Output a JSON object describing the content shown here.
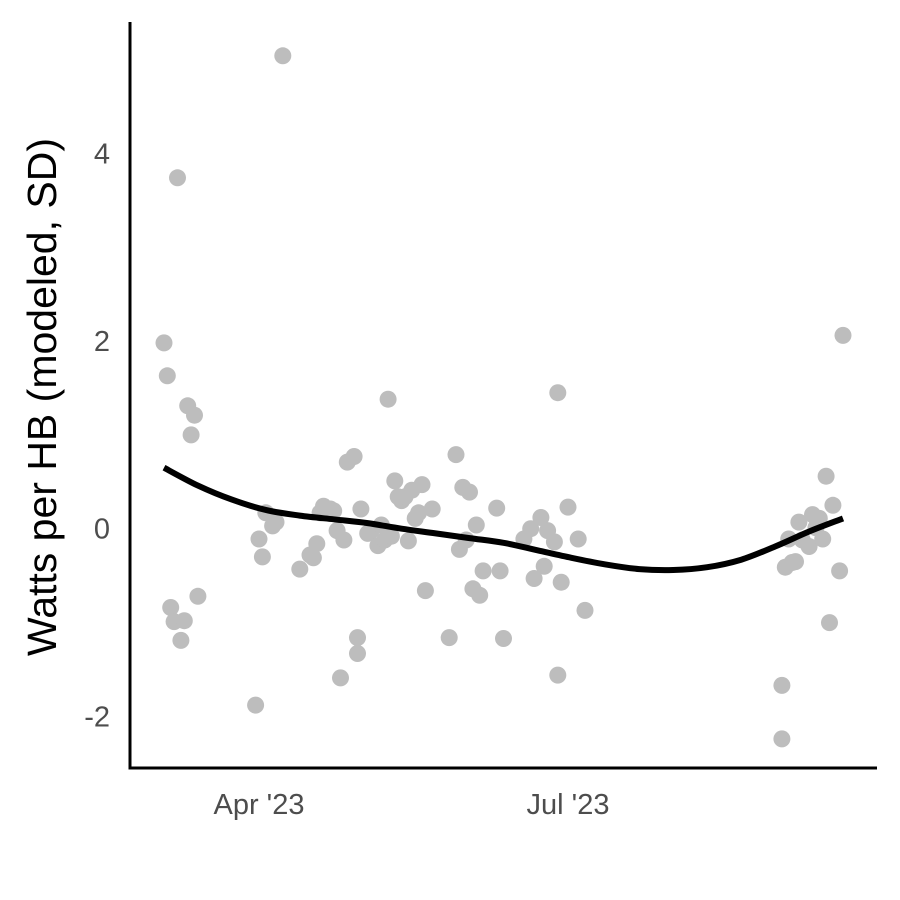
{
  "chart_data": {
    "type": "scatter",
    "title": "",
    "xlabel": "",
    "ylabel": "Watts per HB (modeled, SD)",
    "x_axis": {
      "type": "date",
      "ticks": [
        {
          "value": "2023-04-01",
          "label": "Apr '23"
        },
        {
          "value": "2023-07-01",
          "label": "Jul '23"
        }
      ],
      "range": [
        "2023-02-22",
        "2023-09-30"
      ]
    },
    "y_axis": {
      "ticks": [
        {
          "value": 4,
          "label": "4"
        },
        {
          "value": 2,
          "label": "2"
        },
        {
          "value": 0,
          "label": "0"
        },
        {
          "value": -2,
          "label": "-2"
        }
      ],
      "range": [
        -2.55,
        5.4
      ]
    },
    "grid": false,
    "legend": "none",
    "colors": {
      "points": "#bdbdbd",
      "smooth_line": "#000000",
      "axis": "#000000"
    },
    "series": [
      {
        "kind": "points",
        "points": [
          {
            "x": "2023-03-04",
            "y": 1.98
          },
          {
            "x": "2023-03-05",
            "y": 1.63
          },
          {
            "x": "2023-03-06",
            "y": -0.84
          },
          {
            "x": "2023-03-07",
            "y": -0.99
          },
          {
            "x": "2023-03-08",
            "y": 3.74
          },
          {
            "x": "2023-03-09",
            "y": -1.19
          },
          {
            "x": "2023-03-10",
            "y": -0.98
          },
          {
            "x": "2023-03-11",
            "y": 1.31
          },
          {
            "x": "2023-03-12",
            "y": 1.0
          },
          {
            "x": "2023-03-13",
            "y": 1.21
          },
          {
            "x": "2023-03-14",
            "y": -0.72
          },
          {
            "x": "2023-03-31",
            "y": -1.88
          },
          {
            "x": "2023-04-01",
            "y": -0.11
          },
          {
            "x": "2023-04-02",
            "y": -0.3
          },
          {
            "x": "2023-04-03",
            "y": 0.17
          },
          {
            "x": "2023-04-05",
            "y": 0.03
          },
          {
            "x": "2023-04-06",
            "y": 0.07
          },
          {
            "x": "2023-04-08",
            "y": 5.04
          },
          {
            "x": "2023-04-13",
            "y": -0.43
          },
          {
            "x": "2023-04-16",
            "y": -0.28
          },
          {
            "x": "2023-04-17",
            "y": -0.31
          },
          {
            "x": "2023-04-18",
            "y": -0.16
          },
          {
            "x": "2023-04-19",
            "y": 0.17
          },
          {
            "x": "2023-04-20",
            "y": 0.24
          },
          {
            "x": "2023-04-21",
            "y": 0.21
          },
          {
            "x": "2023-04-22",
            "y": 0.21
          },
          {
            "x": "2023-04-23",
            "y": 0.19
          },
          {
            "x": "2023-04-24",
            "y": -0.02
          },
          {
            "x": "2023-04-25",
            "y": -1.59
          },
          {
            "x": "2023-04-26",
            "y": -0.12
          },
          {
            "x": "2023-04-27",
            "y": 0.71
          },
          {
            "x": "2023-04-29",
            "y": 0.77
          },
          {
            "x": "2023-04-30",
            "y": -1.16
          },
          {
            "x": "2023-04-30",
            "y": -1.33
          },
          {
            "x": "2023-05-01",
            "y": 0.21
          },
          {
            "x": "2023-05-03",
            "y": -0.05
          },
          {
            "x": "2023-05-04",
            "y": -0.02
          },
          {
            "x": "2023-05-06",
            "y": -0.18
          },
          {
            "x": "2023-05-07",
            "y": 0.04
          },
          {
            "x": "2023-05-08",
            "y": -0.12
          },
          {
            "x": "2023-05-09",
            "y": 1.38
          },
          {
            "x": "2023-05-10",
            "y": -0.08
          },
          {
            "x": "2023-05-11",
            "y": 0.51
          },
          {
            "x": "2023-05-12",
            "y": 0.34
          },
          {
            "x": "2023-05-13",
            "y": 0.3
          },
          {
            "x": "2023-05-14",
            "y": 0.34
          },
          {
            "x": "2023-05-15",
            "y": -0.13
          },
          {
            "x": "2023-05-16",
            "y": 0.41
          },
          {
            "x": "2023-05-17",
            "y": 0.11
          },
          {
            "x": "2023-05-18",
            "y": 0.17
          },
          {
            "x": "2023-05-19",
            "y": 0.47
          },
          {
            "x": "2023-05-20",
            "y": -0.66
          },
          {
            "x": "2023-05-22",
            "y": 0.21
          },
          {
            "x": "2023-05-27",
            "y": -1.16
          },
          {
            "x": "2023-05-29",
            "y": 0.79
          },
          {
            "x": "2023-05-30",
            "y": -0.22
          },
          {
            "x": "2023-05-31",
            "y": 0.44
          },
          {
            "x": "2023-06-01",
            "y": -0.12
          },
          {
            "x": "2023-06-02",
            "y": 0.39
          },
          {
            "x": "2023-06-03",
            "y": -0.64
          },
          {
            "x": "2023-06-04",
            "y": 0.04
          },
          {
            "x": "2023-06-05",
            "y": -0.71
          },
          {
            "x": "2023-06-06",
            "y": -0.45
          },
          {
            "x": "2023-06-10",
            "y": 0.22
          },
          {
            "x": "2023-06-11",
            "y": -0.45
          },
          {
            "x": "2023-06-12",
            "y": -1.17
          },
          {
            "x": "2023-06-18",
            "y": -0.11
          },
          {
            "x": "2023-06-20",
            "y": 0.0
          },
          {
            "x": "2023-06-21",
            "y": -0.53
          },
          {
            "x": "2023-06-23",
            "y": 0.12
          },
          {
            "x": "2023-06-24",
            "y": -0.4
          },
          {
            "x": "2023-06-25",
            "y": -0.02
          },
          {
            "x": "2023-06-27",
            "y": -0.14
          },
          {
            "x": "2023-06-28",
            "y": -1.56
          },
          {
            "x": "2023-06-28",
            "y": 1.45
          },
          {
            "x": "2023-06-29",
            "y": -0.57
          },
          {
            "x": "2023-07-01",
            "y": 0.23
          },
          {
            "x": "2023-07-04",
            "y": -0.11
          },
          {
            "x": "2023-07-06",
            "y": -0.87
          },
          {
            "x": "2023-09-02",
            "y": -1.67
          },
          {
            "x": "2023-09-02",
            "y": -2.24
          },
          {
            "x": "2023-09-03",
            "y": -0.41
          },
          {
            "x": "2023-09-04",
            "y": -0.11
          },
          {
            "x": "2023-09-05",
            "y": -0.36
          },
          {
            "x": "2023-09-06",
            "y": -0.35
          },
          {
            "x": "2023-09-07",
            "y": 0.07
          },
          {
            "x": "2023-09-08",
            "y": -0.12
          },
          {
            "x": "2023-09-10",
            "y": -0.19
          },
          {
            "x": "2023-09-11",
            "y": 0.15
          },
          {
            "x": "2023-09-12",
            "y": 0.01
          },
          {
            "x": "2023-09-13",
            "y": 0.11
          },
          {
            "x": "2023-09-14",
            "y": -0.11
          },
          {
            "x": "2023-09-15",
            "y": 0.56
          },
          {
            "x": "2023-09-16",
            "y": -1.0
          },
          {
            "x": "2023-09-17",
            "y": 0.25
          },
          {
            "x": "2023-09-19",
            "y": -0.45
          },
          {
            "x": "2023-09-20",
            "y": 2.06
          }
        ]
      },
      {
        "kind": "smooth_line",
        "points": [
          {
            "x": "2023-03-04",
            "y": 0.65
          },
          {
            "x": "2023-03-14",
            "y": 0.46
          },
          {
            "x": "2023-03-24",
            "y": 0.31
          },
          {
            "x": "2023-04-03",
            "y": 0.2
          },
          {
            "x": "2023-04-13",
            "y": 0.14
          },
          {
            "x": "2023-04-23",
            "y": 0.1
          },
          {
            "x": "2023-05-03",
            "y": 0.06
          },
          {
            "x": "2023-05-13",
            "y": 0.0
          },
          {
            "x": "2023-05-23",
            "y": -0.05
          },
          {
            "x": "2023-06-02",
            "y": -0.1
          },
          {
            "x": "2023-06-12",
            "y": -0.15
          },
          {
            "x": "2023-06-22",
            "y": -0.23
          },
          {
            "x": "2023-07-02",
            "y": -0.31
          },
          {
            "x": "2023-07-12",
            "y": -0.38
          },
          {
            "x": "2023-07-22",
            "y": -0.43
          },
          {
            "x": "2023-08-01",
            "y": -0.44
          },
          {
            "x": "2023-08-11",
            "y": -0.41
          },
          {
            "x": "2023-08-21",
            "y": -0.33
          },
          {
            "x": "2023-08-31",
            "y": -0.19
          },
          {
            "x": "2023-09-10",
            "y": -0.03
          },
          {
            "x": "2023-09-20",
            "y": 0.11
          }
        ]
      }
    ]
  }
}
